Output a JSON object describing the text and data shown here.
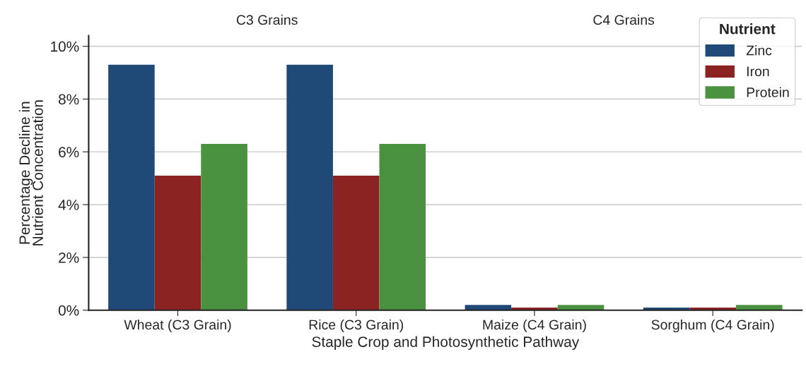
{
  "chart_data": {
    "type": "bar",
    "xlabel": "Staple Crop and Photosynthetic Pathway",
    "ylabel": "Percentage Decline in\nNutrient Concentration",
    "legend_title": "Nutrient",
    "categories": [
      "Wheat (C3 Grain)",
      "Rice (C3 Grain)",
      "Maize (C4 Grain)",
      "Sorghum (C4 Grain)"
    ],
    "series": [
      {
        "name": "Zinc",
        "color": "#1f4a78",
        "values": [
          9.3,
          9.3,
          0.2,
          0.1
        ]
      },
      {
        "name": "Iron",
        "color": "#8b2323",
        "values": [
          5.1,
          5.1,
          0.1,
          0.1
        ]
      },
      {
        "name": "Protein",
        "color": "#4a9140",
        "values": [
          6.3,
          6.3,
          0.2,
          0.2
        ]
      }
    ],
    "annotations": [
      {
        "text": "C3 Grains"
      },
      {
        "text": "C4 Grains"
      }
    ],
    "ylim": [
      0,
      10.4
    ],
    "yticks": [
      {
        "value": 0,
        "label": "0%"
      },
      {
        "value": 2,
        "label": "2%"
      },
      {
        "value": 4,
        "label": "4%"
      },
      {
        "value": 6,
        "label": "6%"
      },
      {
        "value": 8,
        "label": "8%"
      },
      {
        "value": 10,
        "label": "10%"
      }
    ],
    "grid": "y",
    "legend": "top right"
  }
}
